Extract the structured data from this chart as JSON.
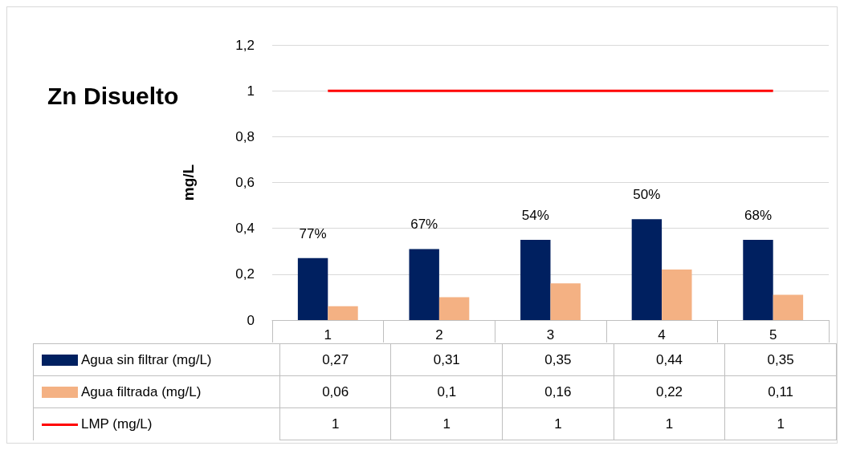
{
  "chart_data": {
    "type": "bar",
    "title": "Zn Disuelto",
    "ylabel": "mg/L",
    "categories": [
      "1",
      "2",
      "3",
      "4",
      "5"
    ],
    "series": [
      {
        "name": "Agua sin filtrar (mg/L)",
        "color": "#002060",
        "values": [
          0.27,
          0.31,
          0.35,
          0.44,
          0.35
        ],
        "value_labels": [
          "0,27",
          "0,31",
          "0,35",
          "0,44",
          "0,35"
        ]
      },
      {
        "name": "Agua filtrada (mg/L)",
        "color": "#f4b183",
        "values": [
          0.06,
          0.1,
          0.16,
          0.22,
          0.11
        ],
        "value_labels": [
          "0,06",
          "0,1",
          "0,16",
          "0,22",
          "0,11"
        ]
      },
      {
        "name": "LMP (mg/L)",
        "type": "line",
        "color": "#ff0000",
        "marker": "none",
        "values": [
          1,
          1,
          1,
          1,
          1
        ],
        "value_labels": [
          "1",
          "1",
          "1",
          "1",
          "1"
        ]
      }
    ],
    "annotations": [
      {
        "text": "77%",
        "x": "1",
        "y": 0.27
      },
      {
        "text": "67%",
        "x": "2",
        "y": 0.31
      },
      {
        "text": "54%",
        "x": "3",
        "y": 0.35
      },
      {
        "text": "50%",
        "x": "4",
        "y": 0.44
      },
      {
        "text": "68%",
        "x": "5",
        "y": 0.35
      }
    ],
    "ylim": [
      0,
      1.2
    ],
    "yticks": [
      {
        "value": 0,
        "label": "0"
      },
      {
        "value": 0.2,
        "label": "0,2"
      },
      {
        "value": 0.4,
        "label": "0,4"
      },
      {
        "value": 0.6,
        "label": "0,6"
      },
      {
        "value": 0.8,
        "label": "0,8"
      },
      {
        "value": 1,
        "label": "1"
      },
      {
        "value": 1.2,
        "label": "1,2"
      }
    ],
    "grid": "y",
    "legend": "bottom left"
  }
}
